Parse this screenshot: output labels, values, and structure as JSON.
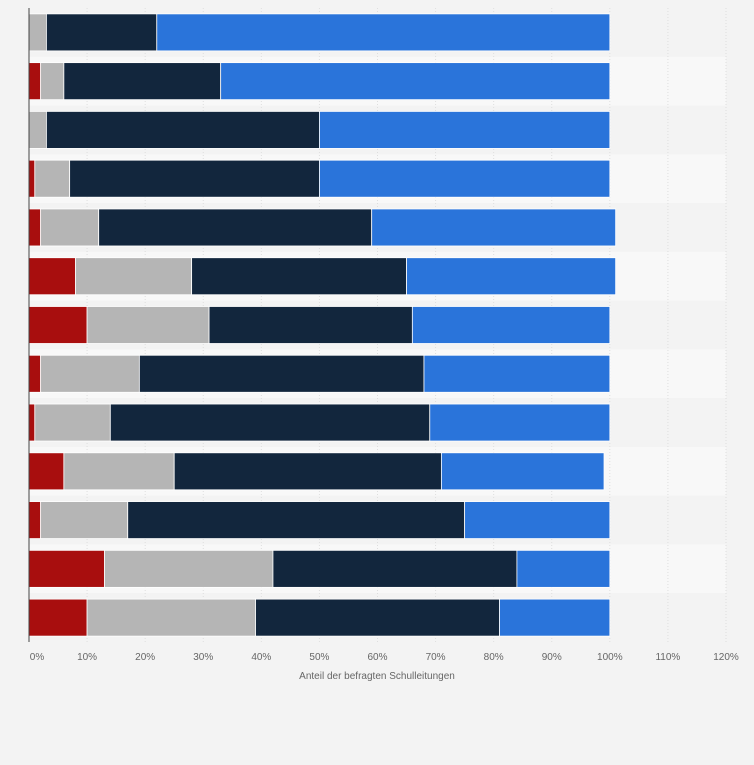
{
  "chart_data": {
    "type": "bar",
    "orientation": "horizontal",
    "stacked": true,
    "categories": [
      "",
      "",
      "",
      "",
      "",
      "",
      "",
      "",
      "",
      "",
      "",
      "",
      ""
    ],
    "series": [
      {
        "color": "#a80e0e",
        "values": [
          0,
          2,
          0,
          1,
          2,
          8,
          10,
          2,
          1,
          6,
          2,
          13,
          10
        ]
      },
      {
        "color": "#b5b5b5",
        "values": [
          3,
          4,
          3,
          6,
          10,
          20,
          21,
          17,
          13,
          19,
          15,
          29,
          29
        ]
      },
      {
        "color": "#12263d",
        "values": [
          19,
          27,
          47,
          43,
          47,
          37,
          35,
          49,
          55,
          46,
          58,
          42,
          42
        ]
      },
      {
        "color": "#2a74da",
        "values": [
          78,
          67,
          50,
          50,
          42,
          36,
          34,
          32,
          31,
          28,
          25,
          16,
          19
        ]
      }
    ],
    "xlim": [
      0,
      120
    ],
    "xticks": [
      "0%",
      "10%",
      "20%",
      "30%",
      "40%",
      "50%",
      "60%",
      "70%",
      "80%",
      "90%",
      "100%",
      "110%",
      "120%"
    ],
    "xlabel": "Anteil der befragten Schulleitungen",
    "grid": true
  }
}
